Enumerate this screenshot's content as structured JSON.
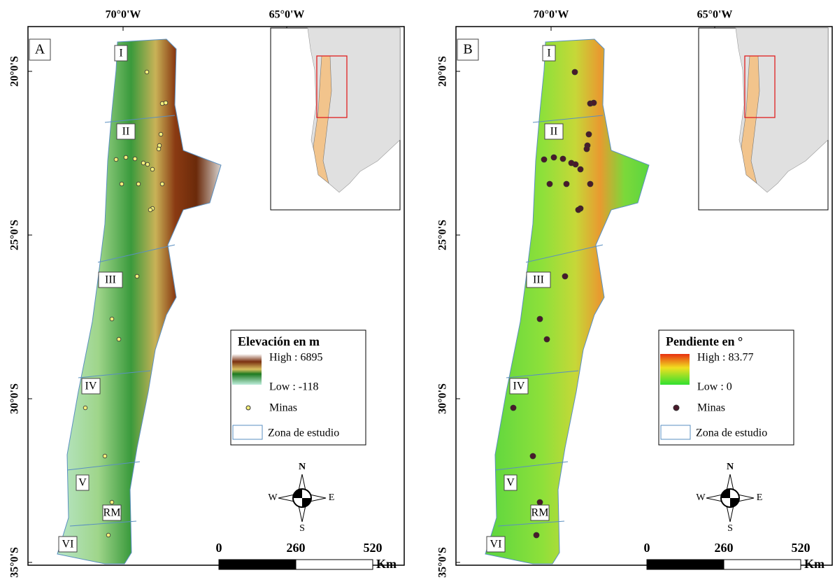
{
  "panels": [
    {
      "letter": "A",
      "longitude_labels": [
        "70°0'W",
        "65°0'W"
      ],
      "latitude_labels": [
        "20°0'S",
        "25°0'S",
        "30°0'S",
        "35°0'S"
      ],
      "regions": [
        "I",
        "II",
        "III",
        "IV",
        "V",
        "RM",
        "VI"
      ],
      "legend": {
        "title": "Elevación en m",
        "high": "High : 6895",
        "low": "Low : -118",
        "mines": "Minas",
        "zone": "Zona de estudio"
      },
      "compass": {
        "n": "N",
        "w": "W",
        "e": "E",
        "s": "S"
      },
      "scale": {
        "ticks": [
          "0",
          "260",
          "520"
        ],
        "unit": "Km"
      }
    },
    {
      "letter": "B",
      "longitude_labels": [
        "70°0'W",
        "65°0'W"
      ],
      "latitude_labels": [
        "20°0'S",
        "25°0'S",
        "30°0'S",
        "35°0'S"
      ],
      "regions": [
        "I",
        "II",
        "III",
        "IV",
        "V",
        "RM",
        "VI"
      ],
      "legend": {
        "title": "Pendiente en °",
        "high": "High : 83.77",
        "low": "Low : 0",
        "mines": "Minas",
        "zone": "Zona de estudio"
      },
      "compass": {
        "n": "N",
        "w": "W",
        "e": "E",
        "s": "S"
      },
      "scale": {
        "ticks": [
          "0",
          "260",
          "520"
        ],
        "unit": "Km"
      }
    }
  ]
}
